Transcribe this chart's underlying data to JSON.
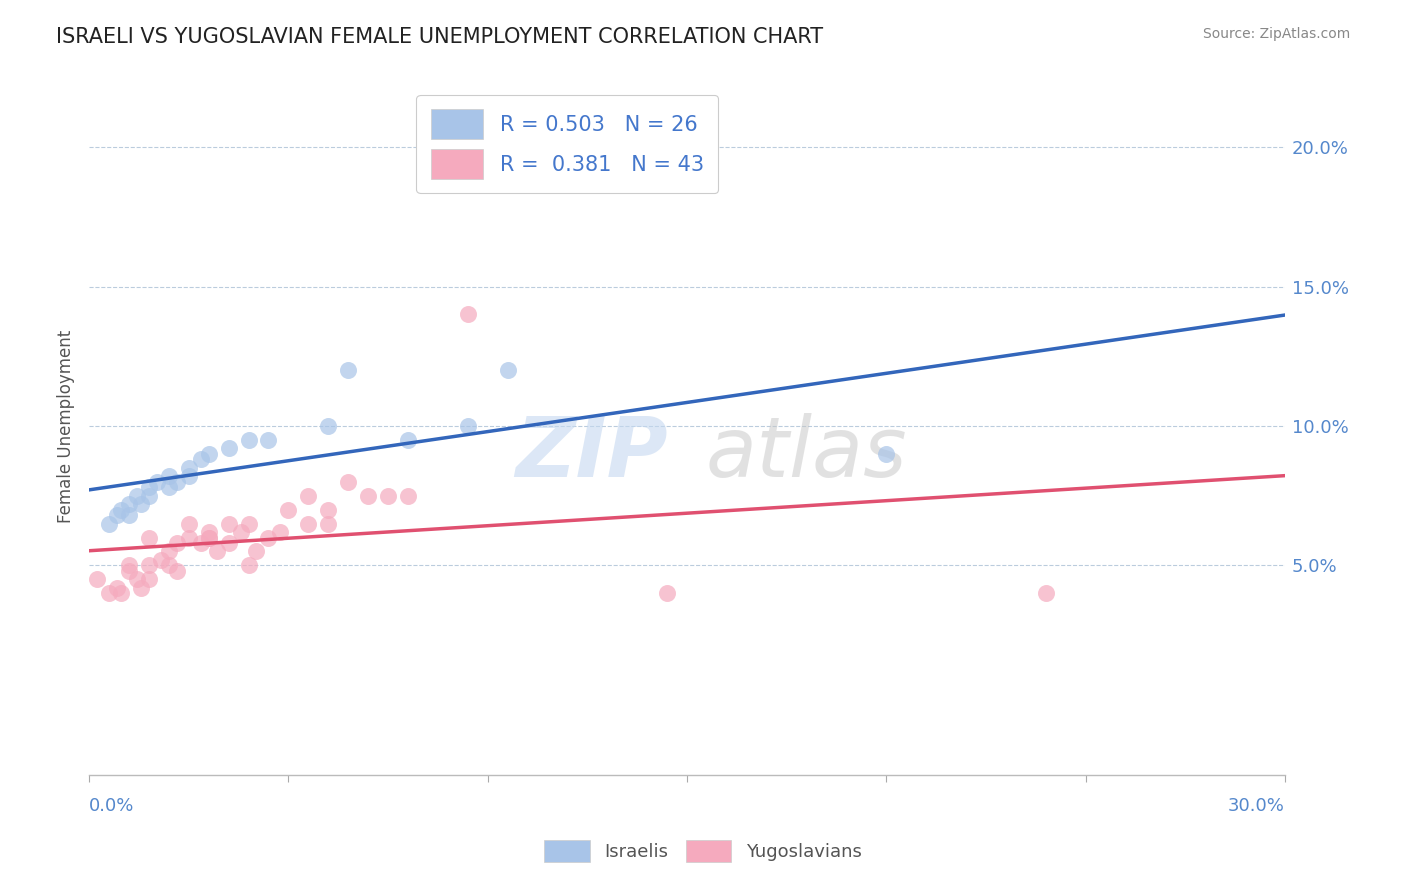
{
  "title": "ISRAELI VS YUGOSLAVIAN FEMALE UNEMPLOYMENT CORRELATION CHART",
  "source": "Source: ZipAtlas.com",
  "ylabel": "Female Unemployment",
  "right_yticks": [
    0.05,
    0.1,
    0.15,
    0.2
  ],
  "right_yticklabels": [
    "5.0%",
    "10.0%",
    "15.0%",
    "20.0%"
  ],
  "xlim": [
    0.0,
    0.3
  ],
  "ylim": [
    -0.025,
    0.225
  ],
  "israeli_R": 0.503,
  "israeli_N": 26,
  "yugoslav_R": 0.381,
  "yugoslav_N": 43,
  "israeli_color": "#a8c4e8",
  "yugoslav_color": "#f5aabe",
  "israeli_line_color": "#3366bb",
  "yugoslav_line_color": "#e05070",
  "israeli_x": [
    0.005,
    0.007,
    0.008,
    0.01,
    0.01,
    0.012,
    0.013,
    0.015,
    0.015,
    0.017,
    0.02,
    0.02,
    0.022,
    0.025,
    0.025,
    0.028,
    0.03,
    0.035,
    0.04,
    0.045,
    0.06,
    0.065,
    0.08,
    0.095,
    0.105,
    0.2
  ],
  "israeli_y": [
    0.065,
    0.068,
    0.07,
    0.068,
    0.072,
    0.075,
    0.072,
    0.075,
    0.078,
    0.08,
    0.078,
    0.082,
    0.08,
    0.082,
    0.085,
    0.088,
    0.09,
    0.092,
    0.095,
    0.095,
    0.1,
    0.12,
    0.095,
    0.1,
    0.12,
    0.09
  ],
  "yugoslav_x": [
    0.002,
    0.005,
    0.007,
    0.008,
    0.01,
    0.01,
    0.012,
    0.013,
    0.015,
    0.015,
    0.015,
    0.018,
    0.02,
    0.02,
    0.022,
    0.022,
    0.025,
    0.025,
    0.028,
    0.03,
    0.03,
    0.03,
    0.032,
    0.035,
    0.035,
    0.038,
    0.04,
    0.04,
    0.042,
    0.045,
    0.048,
    0.05,
    0.055,
    0.055,
    0.06,
    0.06,
    0.065,
    0.07,
    0.075,
    0.08,
    0.095,
    0.145,
    0.24
  ],
  "yugoslav_y": [
    0.045,
    0.04,
    0.042,
    0.04,
    0.048,
    0.05,
    0.045,
    0.042,
    0.05,
    0.045,
    0.06,
    0.052,
    0.055,
    0.05,
    0.048,
    0.058,
    0.06,
    0.065,
    0.058,
    0.06,
    0.062,
    0.06,
    0.055,
    0.065,
    0.058,
    0.062,
    0.065,
    0.05,
    0.055,
    0.06,
    0.062,
    0.07,
    0.065,
    0.075,
    0.07,
    0.065,
    0.08,
    0.075,
    0.075,
    0.075,
    0.14,
    0.04,
    0.04
  ],
  "watermark_zip_color": "#c5d8f0",
  "watermark_atlas_color": "#c5c5c5"
}
